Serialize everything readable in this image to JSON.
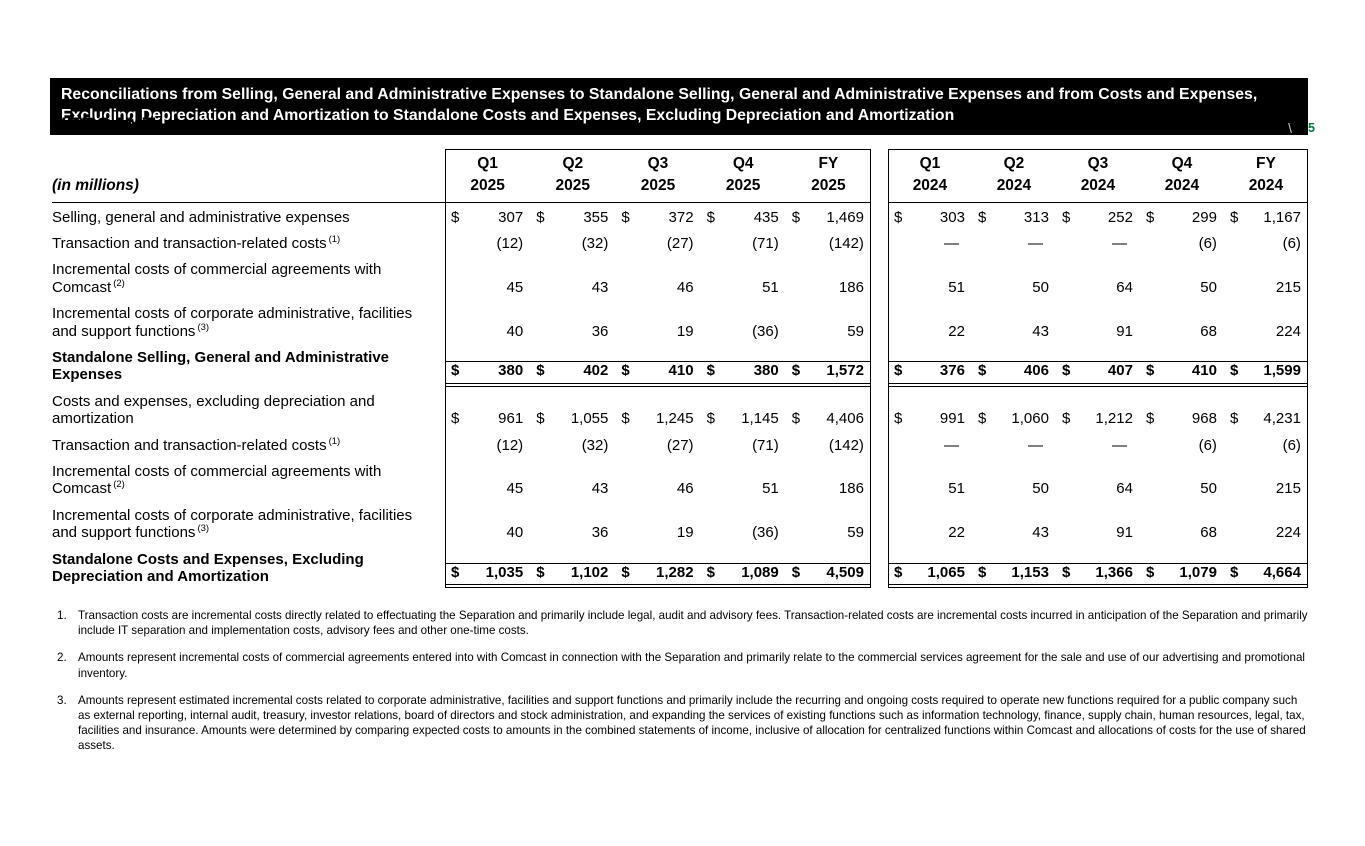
{
  "brand": {
    "logo_text": "VERSANT"
  },
  "page": {
    "separator": "\\",
    "number": "5"
  },
  "banner": {
    "title": "Reconciliations from Selling, General and Administrative Expenses to Standalone Selling, General and Administrative Expenses and from Costs and Expenses, Excluding Depreciation and Amortization to Standalone Costs and Expenses, Excluding Depreciation and Amortization"
  },
  "table": {
    "units_label": "(in millions)",
    "currency_symbol": "$",
    "groups": [
      {
        "year": "2025",
        "quarters": [
          "Q1",
          "Q2",
          "Q3",
          "Q4",
          "FY"
        ]
      },
      {
        "year": "2024",
        "quarters": [
          "Q1",
          "Q2",
          "Q3",
          "Q4",
          "FY"
        ]
      }
    ],
    "rows": [
      {
        "label": "Selling, general and administrative expenses",
        "sup": "",
        "dollar": true,
        "bold": false,
        "total": false,
        "values_2025": [
          "307",
          "355",
          "372",
          "435",
          "1,469"
        ],
        "values_2024": [
          "303",
          "313",
          "252",
          "299",
          "1,167"
        ]
      },
      {
        "label": "Transaction and transaction-related costs",
        "sup": "(1)",
        "dollar": false,
        "bold": false,
        "total": false,
        "values_2025": [
          "(12)",
          "(32)",
          "(27)",
          "(71)",
          "(142)"
        ],
        "values_2024": [
          "—",
          "—",
          "—",
          "(6)",
          "(6)"
        ]
      },
      {
        "label": "Incremental costs of commercial agreements with Comcast",
        "sup": "(2)",
        "dollar": false,
        "bold": false,
        "total": false,
        "values_2025": [
          "45",
          "43",
          "46",
          "51",
          "186"
        ],
        "values_2024": [
          "51",
          "50",
          "64",
          "50",
          "215"
        ]
      },
      {
        "label": "Incremental costs of corporate administrative, facilities and support functions",
        "sup": "(3)",
        "dollar": false,
        "bold": false,
        "total": false,
        "values_2025": [
          "40",
          "36",
          "19",
          "(36)",
          "59"
        ],
        "values_2024": [
          "22",
          "43",
          "91",
          "68",
          "224"
        ]
      },
      {
        "label": "Standalone Selling, General and Administrative Expenses",
        "sup": "",
        "dollar": true,
        "bold": true,
        "total": true,
        "values_2025": [
          "380",
          "402",
          "410",
          "380",
          "1,572"
        ],
        "values_2024": [
          "376",
          "406",
          "407",
          "410",
          "1,599"
        ]
      },
      {
        "label": "Costs and expenses, excluding depreciation and amortization",
        "sup": "",
        "dollar": true,
        "bold": false,
        "total": false,
        "values_2025": [
          "961",
          "1,055",
          "1,245",
          "1,145",
          "4,406"
        ],
        "values_2024": [
          "991",
          "1,060",
          "1,212",
          "968",
          "4,231"
        ]
      },
      {
        "label": "Transaction and transaction-related costs",
        "sup": "(1)",
        "dollar": false,
        "bold": false,
        "total": false,
        "values_2025": [
          "(12)",
          "(32)",
          "(27)",
          "(71)",
          "(142)"
        ],
        "values_2024": [
          "—",
          "—",
          "—",
          "(6)",
          "(6)"
        ]
      },
      {
        "label": "Incremental costs of commercial agreements with Comcast",
        "sup": "(2)",
        "dollar": false,
        "bold": false,
        "total": false,
        "values_2025": [
          "45",
          "43",
          "46",
          "51",
          "186"
        ],
        "values_2024": [
          "51",
          "50",
          "64",
          "50",
          "215"
        ]
      },
      {
        "label": "Incremental costs of corporate administrative, facilities and support functions",
        "sup": "(3)",
        "dollar": false,
        "bold": false,
        "total": false,
        "values_2025": [
          "40",
          "36",
          "19",
          "(36)",
          "59"
        ],
        "values_2024": [
          "22",
          "43",
          "91",
          "68",
          "224"
        ]
      },
      {
        "label": "Standalone Costs and Expenses, Excluding Depreciation and Amortization",
        "sup": "",
        "dollar": true,
        "bold": true,
        "total": true,
        "values_2025": [
          "1,035",
          "1,102",
          "1,282",
          "1,089",
          "4,509"
        ],
        "values_2024": [
          "1,065",
          "1,153",
          "1,366",
          "1,079",
          "4,664"
        ]
      }
    ]
  },
  "footnotes": [
    {
      "num": "1.",
      "text": "Transaction costs are incremental costs directly related to effectuating the Separation and primarily include legal, audit and advisory fees. Transaction-related costs are incremental costs incurred in anticipation of the Separation and primarily include IT separation and implementation costs, advisory fees and other one-time costs."
    },
    {
      "num": "2.",
      "text": "Amounts represent incremental costs of commercial agreements entered into with Comcast in connection with the Separation and primarily relate to the commercial services agreement for the sale and use of our advertising and promotional inventory."
    },
    {
      "num": "3.",
      "text": "Amounts represent estimated incremental costs related to corporate administrative, facilities and support functions and primarily include the recurring and ongoing costs required to operate new functions required for a public company such as external reporting, internal audit, treasury, investor relations, board of directors and stock administration, and expanding the services of existing functions such as information technology, finance, supply chain, human resources, legal, tax, facilities and insurance. Amounts were determined by comparing expected costs to amounts in the combined statements of income, inclusive of allocation for centralized functions within Comcast and allocations of costs for the use of shared assets."
    }
  ],
  "colors": {
    "banner_bg": "#000000",
    "banner_text": "#ffffff",
    "page_number": "#007a3d",
    "separator": "#c4c4c4"
  }
}
